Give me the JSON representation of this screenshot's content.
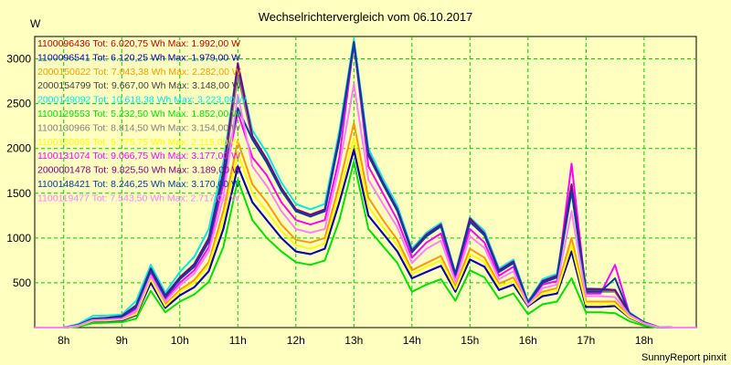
{
  "chart_data": {
    "type": "line",
    "title": "Wechselrichtervergleich vom 06.10.2017",
    "ylabel": "W",
    "xlabel": "",
    "x_ticks": [
      "8h",
      "9h",
      "10h",
      "11h",
      "12h",
      "13h",
      "14h",
      "15h",
      "16h",
      "17h",
      "18h"
    ],
    "y_ticks": [
      500,
      1000,
      1500,
      2000,
      2500,
      3000
    ],
    "xlim": [
      7.5,
      18.9
    ],
    "ylim": [
      0,
      3250
    ],
    "grid": true,
    "legend_position": "top-left",
    "x": [
      7.5,
      7.75,
      8.0,
      8.25,
      8.5,
      8.75,
      9.0,
      9.25,
      9.5,
      9.75,
      10.0,
      10.25,
      10.5,
      10.75,
      11.0,
      11.25,
      11.5,
      11.75,
      12.0,
      12.25,
      12.5,
      12.75,
      13.0,
      13.25,
      13.5,
      13.75,
      14.0,
      14.25,
      14.5,
      14.75,
      15.0,
      15.25,
      15.5,
      15.75,
      16.0,
      16.25,
      16.5,
      16.75,
      17.0,
      17.25,
      17.5,
      17.75,
      18.0,
      18.25,
      18.5,
      18.75,
      18.9
    ],
    "series": [
      {
        "name": "1100096436 Tot: 6.020,75 Wh Max: 1.992,00 W",
        "color": "#c00000",
        "values": [
          0,
          0,
          0,
          15,
          70,
          75,
          80,
          140,
          500,
          220,
          360,
          450,
          630,
          1100,
          1800,
          1400,
          1200,
          1000,
          850,
          820,
          880,
          1400,
          1992,
          1250,
          1050,
          850,
          550,
          620,
          690,
          400,
          760,
          680,
          420,
          480,
          240,
          350,
          380,
          850,
          230,
          230,
          240,
          110,
          40,
          5,
          0,
          0,
          0
        ]
      },
      {
        "name": "1100096541 Tot: 6.120,25 Wh Max: 1.979,00 W",
        "color": "#0000c0",
        "values": [
          0,
          0,
          0,
          15,
          70,
          75,
          80,
          140,
          500,
          220,
          360,
          450,
          630,
          1100,
          1800,
          1400,
          1200,
          1000,
          850,
          820,
          880,
          1400,
          1979,
          1250,
          1050,
          850,
          550,
          620,
          690,
          400,
          760,
          680,
          420,
          480,
          240,
          350,
          380,
          850,
          230,
          230,
          240,
          110,
          40,
          5,
          0,
          0,
          0
        ]
      },
      {
        "name": "2000150622 Tot: 7.043,38 Wh Max: 2.282,00 W",
        "color": "#ff9900",
        "values": [
          0,
          0,
          0,
          20,
          80,
          85,
          95,
          160,
          570,
          260,
          420,
          530,
          730,
          1300,
          2080,
          1600,
          1400,
          1150,
          980,
          950,
          1000,
          1600,
          2282,
          1450,
          1200,
          980,
          640,
          720,
          800,
          460,
          880,
          780,
          490,
          560,
          270,
          400,
          440,
          1000,
          290,
          290,
          290,
          120,
          50,
          5,
          0,
          0,
          0
        ]
      },
      {
        "name": "2000154799 Tot: 9.667,00 Wh Max: 3.148,00 W",
        "color": "#404040",
        "values": [
          0,
          0,
          0,
          30,
          100,
          110,
          130,
          250,
          660,
          360,
          560,
          710,
          1000,
          1740,
          2860,
          2140,
          1880,
          1560,
          1320,
          1260,
          1320,
          2140,
          3148,
          1950,
          1620,
          1320,
          860,
          1040,
          1150,
          600,
          1200,
          1050,
          640,
          740,
          280,
          520,
          580,
          1560,
          420,
          420,
          410,
          160,
          60,
          5,
          0,
          0,
          0
        ]
      },
      {
        "name": "2000149092 Tot: 10.618,38 Wh Max: 3.223,00 W",
        "color": "#00e8e8",
        "values": [
          0,
          0,
          0,
          40,
          130,
          135,
          145,
          300,
          700,
          390,
          620,
          790,
          1100,
          1850,
          2950,
          2200,
          1950,
          1620,
          1380,
          1320,
          1380,
          2200,
          3223,
          2000,
          1660,
          1360,
          880,
          1060,
          1170,
          610,
          1230,
          1080,
          660,
          760,
          290,
          540,
          600,
          1600,
          440,
          430,
          420,
          170,
          60,
          5,
          0,
          0,
          0
        ]
      },
      {
        "name": "1100129553 Tot: 5.232,50 Wh Max: 1.852,00 W",
        "color": "#00e000",
        "values": [
          0,
          0,
          0,
          10,
          50,
          55,
          60,
          100,
          410,
          170,
          290,
          370,
          510,
          900,
          1650,
          1200,
          1000,
          850,
          730,
          700,
          750,
          1200,
          1852,
          1100,
          910,
          720,
          400,
          480,
          540,
          300,
          640,
          560,
          320,
          380,
          150,
          260,
          290,
          550,
          170,
          170,
          160,
          70,
          20,
          0,
          0,
          0,
          0
        ]
      },
      {
        "name": "1100130966 Tot: 8.814,50 Wh Max: 3.154,00 W",
        "color": "#808080",
        "values": [
          0,
          0,
          0,
          28,
          95,
          100,
          120,
          230,
          640,
          340,
          540,
          680,
          960,
          1680,
          2820,
          2100,
          1840,
          1530,
          1300,
          1240,
          1300,
          2100,
          3154,
          1920,
          1600,
          1300,
          840,
          1020,
          1130,
          590,
          1180,
          1030,
          620,
          720,
          270,
          500,
          560,
          1520,
          400,
          400,
          400,
          150,
          60,
          5,
          0,
          0,
          0
        ]
      },
      {
        "name": "1100130065 Tot: 5.775,75 Wh Max: 2.115,00 W",
        "color": "#ffff00",
        "values": [
          0,
          0,
          0,
          18,
          75,
          80,
          90,
          150,
          540,
          240,
          400,
          500,
          700,
          1200,
          1950,
          1500,
          1300,
          1080,
          920,
          880,
          940,
          1500,
          2115,
          1350,
          1120,
          920,
          600,
          680,
          750,
          430,
          820,
          730,
          460,
          520,
          250,
          380,
          410,
          920,
          260,
          260,
          260,
          115,
          45,
          5,
          0,
          0,
          0
        ]
      },
      {
        "name": "1100131074 Tot: 9.066,75 Wh Max: 3.177,00 W",
        "color": "#ff00ff",
        "values": [
          0,
          0,
          0,
          25,
          90,
          95,
          110,
          210,
          600,
          320,
          500,
          640,
          900,
          1600,
          2400,
          1900,
          1700,
          1400,
          1200,
          1150,
          1200,
          1900,
          3177,
          1800,
          1500,
          1200,
          780,
          950,
          1050,
          560,
          1100,
          950,
          580,
          680,
          260,
          480,
          520,
          1830,
          380,
          380,
          700,
          150,
          50,
          5,
          0,
          0,
          0
        ]
      },
      {
        "name": "2000001478 Tot: 9.825,50 Wh Max: 3.189,00 W",
        "color": "#800080",
        "values": [
          0,
          0,
          0,
          30,
          100,
          110,
          130,
          250,
          660,
          360,
          560,
          710,
          1000,
          1740,
          2950,
          2140,
          1880,
          1560,
          1320,
          1260,
          1320,
          2140,
          3189,
          1950,
          1620,
          1320,
          860,
          1040,
          1150,
          600,
          1220,
          1050,
          640,
          740,
          280,
          520,
          580,
          1600,
          430,
          430,
          420,
          160,
          60,
          5,
          0,
          0,
          0
        ]
      },
      {
        "name": "1100148421 Tot: 8.246,25 Wh Max: 3.170,00 W",
        "color": "#0040a0",
        "values": [
          0,
          0,
          0,
          28,
          95,
          100,
          120,
          230,
          640,
          340,
          540,
          680,
          960,
          1680,
          2450,
          2100,
          1840,
          1530,
          1300,
          1240,
          1300,
          2100,
          3170,
          1920,
          1600,
          1300,
          840,
          1020,
          1130,
          590,
          1180,
          1030,
          620,
          720,
          270,
          500,
          560,
          1520,
          400,
          400,
          550,
          150,
          60,
          5,
          0,
          0,
          0
        ]
      },
      {
        "name": "1100119477 Tot: 7.543,50 Wh Max: 2.717,00 W",
        "color": "#ff80ff",
        "values": [
          0,
          0,
          0,
          22,
          85,
          90,
          100,
          180,
          580,
          290,
          470,
          600,
          850,
          1450,
          2600,
          1800,
          1580,
          1300,
          1100,
          1060,
          1100,
          1800,
          2717,
          1650,
          1380,
          1120,
          720,
          880,
          970,
          510,
          1020,
          890,
          540,
          630,
          250,
          440,
          480,
          1300,
          350,
          350,
          340,
          140,
          50,
          5,
          0,
          0,
          0
        ]
      }
    ]
  },
  "footer": "SunnyReport pinxit",
  "colors": {
    "background": "#ffffc0",
    "grid": "#00cc00"
  }
}
